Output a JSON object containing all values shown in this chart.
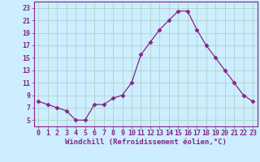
{
  "x": [
    0,
    1,
    2,
    3,
    4,
    5,
    6,
    7,
    8,
    9,
    10,
    11,
    12,
    13,
    14,
    15,
    16,
    17,
    18,
    19,
    20,
    21,
    22,
    23
  ],
  "y": [
    8.0,
    7.5,
    7.0,
    6.5,
    5.0,
    5.0,
    7.5,
    7.5,
    8.5,
    9.0,
    11.0,
    15.5,
    17.5,
    19.5,
    21.0,
    22.5,
    22.5,
    19.5,
    17.0,
    15.0,
    13.0,
    11.0,
    9.0,
    8.0
  ],
  "xlim": [
    -0.5,
    23.5
  ],
  "ylim": [
    4,
    24
  ],
  "yticks": [
    5,
    7,
    9,
    11,
    13,
    15,
    17,
    19,
    21,
    23
  ],
  "xticks": [
    0,
    1,
    2,
    3,
    4,
    5,
    6,
    7,
    8,
    9,
    10,
    11,
    12,
    13,
    14,
    15,
    16,
    17,
    18,
    19,
    20,
    21,
    22,
    23
  ],
  "xlabel": "Windchill (Refroidissement éolien,°C)",
  "line_color": "#882288",
  "marker": "D",
  "marker_size": 2.5,
  "bg_color": "#cceeff",
  "grid_color": "#aaccbb",
  "tick_color": "#882288",
  "label_color": "#882288",
  "xlabel_fontsize": 6.5,
  "tick_fontsize": 6.0
}
